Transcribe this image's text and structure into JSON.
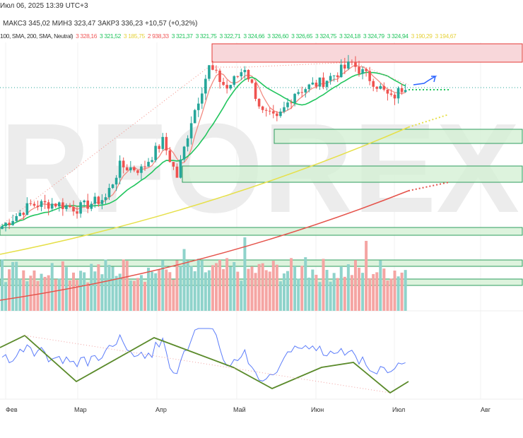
{
  "header": {
    "date": "Июл 06, 2025 13:39 UTC+3",
    "ohlc": "МАКС3 345,02  МИН3 323,47  ЗАКР3 336,23  +10,57 (+0,32%)",
    "indicator_label": "100, SMA, 200, SMA, Neutral)",
    "indicator_values": [
      {
        "v": "3 328,16",
        "c": "#f05a5a"
      },
      {
        "v": "3 321,52",
        "c": "#22c55e"
      },
      {
        "v": "3 185,75",
        "c": "#e6d23c"
      },
      {
        "v": "2 938,33",
        "c": "#f05a5a"
      },
      {
        "v": "3 321,37",
        "c": "#22c55e"
      },
      {
        "v": "3 321,75",
        "c": "#22c55e"
      },
      {
        "v": "3 322,71",
        "c": "#22c55e"
      },
      {
        "v": "3 324,66",
        "c": "#22c55e"
      },
      {
        "v": "3 326,60",
        "c": "#22c55e"
      },
      {
        "v": "3 326,65",
        "c": "#22c55e"
      },
      {
        "v": "3 324,75",
        "c": "#22c55e"
      },
      {
        "v": "3 324,18",
        "c": "#22c55e"
      },
      {
        "v": "3 324,79",
        "c": "#22c55e"
      },
      {
        "v": "3 324,94",
        "c": "#22c55e"
      },
      {
        "v": "3 190,29",
        "c": "#e6d23c"
      },
      {
        "v": "3 194,67",
        "c": "#e6d23c"
      }
    ]
  },
  "watermark": "RFOREX",
  "months": [
    "Фев",
    "Мар",
    "Апр",
    "Май",
    "Июн",
    "Июл",
    "Авг"
  ],
  "colors": {
    "up": "#26a69a",
    "down": "#ef5350",
    "resistance": "#f8d7da",
    "support": "#d4f0d4"
  },
  "chart_data": {
    "type": "candlestick",
    "key_closes": [
      2875,
      2950,
      2955,
      2937,
      2975,
      3087,
      3075,
      3175,
      3050,
      3250,
      3437,
      3362,
      3437,
      3275,
      3250,
      3350,
      3387,
      3450,
      3387,
      3325,
      3375
    ],
    "key_index": [
      0,
      8,
      15,
      21,
      29,
      33,
      39,
      45,
      49,
      53,
      58,
      63,
      68,
      73,
      77,
      82,
      90,
      98,
      104,
      109,
      113
    ]
  }
}
